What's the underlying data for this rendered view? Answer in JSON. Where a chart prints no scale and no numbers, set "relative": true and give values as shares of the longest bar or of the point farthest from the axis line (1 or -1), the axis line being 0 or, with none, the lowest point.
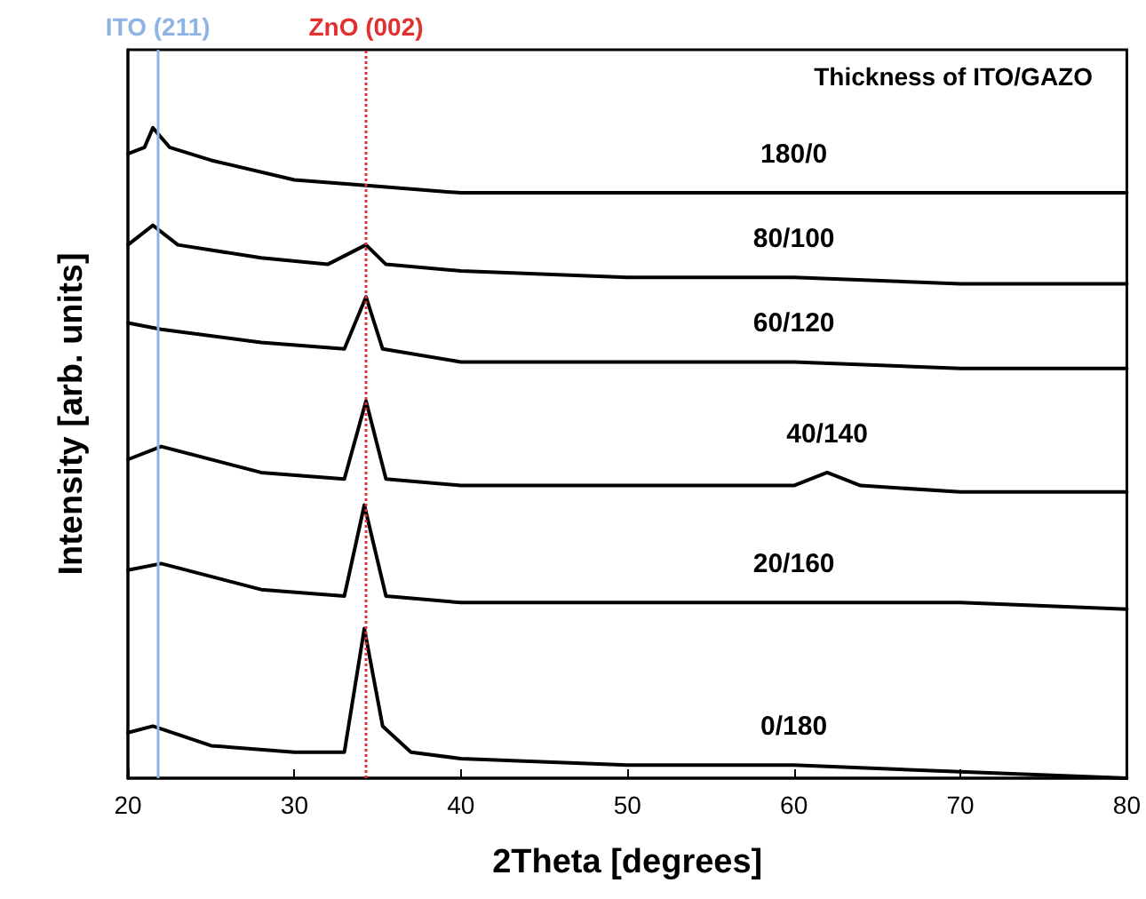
{
  "chart_data": {
    "type": "line",
    "relative": true,
    "xlabel": "2Theta [degrees]",
    "ylabel": "Intensity [arb. units]",
    "xlim": [
      20,
      80
    ],
    "xticks": [
      20,
      30,
      40,
      50,
      60,
      70,
      80
    ],
    "tick_labels": "x",
    "grid": false,
    "legend": false,
    "marker": "none",
    "line_style": "solid",
    "annotations": [
      "Thickness of ITO/GAZO"
    ],
    "ref_lines": [
      {
        "axis": "x",
        "value": 21.8,
        "label": "ITO (211)",
        "color": "#8fb4e3",
        "line_style": "solid"
      },
      {
        "axis": "x",
        "value": 34.3,
        "label": "ZnO (002)",
        "color": "#e03030",
        "line_style": "dotted"
      }
    ],
    "series": [
      {
        "name": "180/0",
        "color": "#000000",
        "x": [
          20,
          21,
          21.5,
          22.5,
          25,
          30,
          35,
          40,
          50,
          60,
          70,
          80
        ],
        "values": [
          0.96,
          0.97,
          1.0,
          0.97,
          0.95,
          0.92,
          0.91,
          0.9,
          0.9,
          0.9,
          0.9,
          0.9
        ]
      },
      {
        "name": "80/100",
        "color": "#000000",
        "x": [
          20,
          21.5,
          23,
          28,
          32,
          34.3,
          35.5,
          40,
          50,
          60,
          70,
          80
        ],
        "values": [
          0.82,
          0.85,
          0.82,
          0.8,
          0.79,
          0.82,
          0.79,
          0.78,
          0.77,
          0.77,
          0.76,
          0.76
        ]
      },
      {
        "name": "60/120",
        "color": "#000000",
        "x": [
          20,
          22,
          28,
          33,
          34.3,
          35.3,
          40,
          50,
          60,
          70,
          80
        ],
        "values": [
          0.7,
          0.69,
          0.67,
          0.66,
          0.74,
          0.66,
          0.64,
          0.64,
          0.64,
          0.63,
          0.63
        ]
      },
      {
        "name": "40/140",
        "color": "#000000",
        "x": [
          20,
          22,
          28,
          33,
          34.3,
          35.5,
          40,
          50,
          60,
          62,
          64,
          70,
          80
        ],
        "values": [
          0.49,
          0.51,
          0.47,
          0.46,
          0.58,
          0.46,
          0.45,
          0.45,
          0.45,
          0.47,
          0.45,
          0.44,
          0.44
        ]
      },
      {
        "name": "20/160",
        "color": "#000000",
        "x": [
          20,
          22,
          28,
          33,
          34.2,
          35.5,
          40,
          50,
          60,
          70,
          80
        ],
        "values": [
          0.32,
          0.33,
          0.29,
          0.28,
          0.42,
          0.28,
          0.27,
          0.27,
          0.27,
          0.27,
          0.26
        ]
      },
      {
        "name": "0/180",
        "color": "#000000",
        "x": [
          20,
          21.5,
          25,
          30,
          33,
          34.2,
          35.3,
          37,
          40,
          50,
          60,
          70,
          80
        ],
        "values": [
          0.07,
          0.08,
          0.05,
          0.04,
          0.04,
          0.23,
          0.08,
          0.04,
          0.03,
          0.02,
          0.02,
          0.01,
          0.0
        ]
      }
    ]
  }
}
